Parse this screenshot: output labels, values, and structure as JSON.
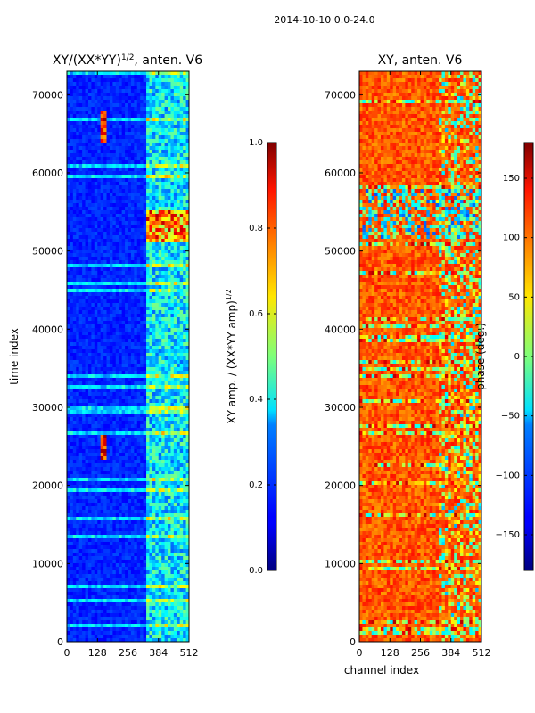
{
  "figure": {
    "suptitle": "2014-10-10 0.0-24.0"
  },
  "chart_data": [
    {
      "type": "heatmap",
      "title": "XY/(XX*YY)",
      "title_superscript": "1/2",
      "title_suffix": ", anten. V6",
      "xlabel": "",
      "ylabel": "time index",
      "xlim": [
        0,
        512
      ],
      "ylim": [
        0,
        73000
      ],
      "xticks": [
        "0",
        "128",
        "256",
        "384",
        "512"
      ],
      "xtick_values": [
        0,
        128,
        256,
        384,
        512
      ],
      "yticks": [
        "0",
        "10000",
        "20000",
        "30000",
        "40000",
        "50000",
        "60000",
        "70000"
      ],
      "ytick_values": [
        0,
        10000,
        20000,
        30000,
        40000,
        50000,
        60000,
        70000
      ],
      "colormap": "jet",
      "colorbar": {
        "label": "XY amp. / (XX*YY amp)",
        "label_superscript": "1/2",
        "range": [
          0.0,
          1.0
        ],
        "ticks": [
          "0.0",
          "0.2",
          "0.4",
          "0.6",
          "0.8",
          "1.0"
        ],
        "tick_values": [
          0.0,
          0.2,
          0.4,
          0.6,
          0.8,
          1.0
        ]
      }
    },
    {
      "type": "heatmap",
      "title": "XY, anten. V6",
      "xlabel": "channel index",
      "ylabel": "",
      "xlim": [
        0,
        512
      ],
      "ylim": [
        0,
        73000
      ],
      "xticks": [
        "0",
        "128",
        "256",
        "384",
        "512"
      ],
      "xtick_values": [
        0,
        128,
        256,
        384,
        512
      ],
      "yticks": [
        "0",
        "10000",
        "20000",
        "30000",
        "40000",
        "50000",
        "60000",
        "70000"
      ],
      "ytick_values": [
        0,
        10000,
        20000,
        30000,
        40000,
        50000,
        60000,
        70000
      ],
      "colormap": "jet",
      "colorbar": {
        "label": "phase (deg.)",
        "range": [
          -180,
          180
        ],
        "ticks": [
          "−150",
          "−100",
          "−50",
          "0",
          "50",
          "100",
          "150"
        ],
        "tick_values": [
          -150,
          -100,
          -50,
          0,
          50,
          100,
          150
        ]
      }
    }
  ]
}
